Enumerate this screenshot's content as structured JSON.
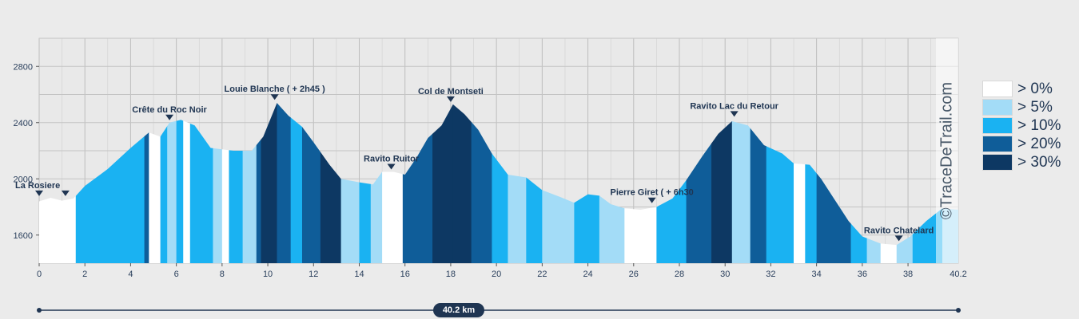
{
  "chart_data": {
    "type": "area",
    "title": "",
    "xlabel": "",
    "ylabel": "",
    "xlim": [
      0,
      40.2
    ],
    "ylim": [
      1400,
      3000
    ],
    "x_ticks": [
      0,
      2,
      4,
      6,
      8,
      10,
      12,
      14,
      16,
      18,
      20,
      22,
      24,
      26,
      28,
      30,
      32,
      34,
      36,
      38
    ],
    "x_end_label": "40.2",
    "y_ticks": [
      1600,
      2000,
      2400,
      2800
    ],
    "grid": true,
    "legend_position": "right",
    "profile": [
      {
        "x": 0,
        "y": 1840
      },
      {
        "x": 0.5,
        "y": 1865
      },
      {
        "x": 1.0,
        "y": 1845
      },
      {
        "x": 1.5,
        "y": 1860
      },
      {
        "x": 2.0,
        "y": 1950
      },
      {
        "x": 3.0,
        "y": 2070
      },
      {
        "x": 4.0,
        "y": 2220
      },
      {
        "x": 4.8,
        "y": 2330
      },
      {
        "x": 5.3,
        "y": 2300
      },
      {
        "x": 5.7,
        "y": 2400
      },
      {
        "x": 6.2,
        "y": 2420
      },
      {
        "x": 6.8,
        "y": 2380
      },
      {
        "x": 7.5,
        "y": 2220
      },
      {
        "x": 8.5,
        "y": 2200
      },
      {
        "x": 9.3,
        "y": 2200
      },
      {
        "x": 9.8,
        "y": 2300
      },
      {
        "x": 10.4,
        "y": 2540
      },
      {
        "x": 10.9,
        "y": 2450
      },
      {
        "x": 11.5,
        "y": 2370
      },
      {
        "x": 12.0,
        "y": 2260
      },
      {
        "x": 12.7,
        "y": 2100
      },
      {
        "x": 13.2,
        "y": 2000
      },
      {
        "x": 14.0,
        "y": 1975
      },
      {
        "x": 14.6,
        "y": 1960
      },
      {
        "x": 15.0,
        "y": 2050
      },
      {
        "x": 15.5,
        "y": 2050
      },
      {
        "x": 16.0,
        "y": 2030
      },
      {
        "x": 16.5,
        "y": 2150
      },
      {
        "x": 17.0,
        "y": 2290
      },
      {
        "x": 17.6,
        "y": 2380
      },
      {
        "x": 18.1,
        "y": 2530
      },
      {
        "x": 18.6,
        "y": 2460
      },
      {
        "x": 19.2,
        "y": 2350
      },
      {
        "x": 19.8,
        "y": 2180
      },
      {
        "x": 20.5,
        "y": 2030
      },
      {
        "x": 21.3,
        "y": 2010
      },
      {
        "x": 22.0,
        "y": 1920
      },
      {
        "x": 22.8,
        "y": 1870
      },
      {
        "x": 23.4,
        "y": 1830
      },
      {
        "x": 24.0,
        "y": 1890
      },
      {
        "x": 24.5,
        "y": 1880
      },
      {
        "x": 25.0,
        "y": 1820
      },
      {
        "x": 25.6,
        "y": 1790
      },
      {
        "x": 26.3,
        "y": 1780
      },
      {
        "x": 27.0,
        "y": 1800
      },
      {
        "x": 27.7,
        "y": 1860
      },
      {
        "x": 28.3,
        "y": 1990
      },
      {
        "x": 29.0,
        "y": 2160
      },
      {
        "x": 29.7,
        "y": 2320
      },
      {
        "x": 30.3,
        "y": 2410
      },
      {
        "x": 31.0,
        "y": 2380
      },
      {
        "x": 31.7,
        "y": 2240
      },
      {
        "x": 32.5,
        "y": 2180
      },
      {
        "x": 33.0,
        "y": 2110
      },
      {
        "x": 33.7,
        "y": 2100
      },
      {
        "x": 34.2,
        "y": 2000
      },
      {
        "x": 34.8,
        "y": 1850
      },
      {
        "x": 35.4,
        "y": 1700
      },
      {
        "x": 36.0,
        "y": 1590
      },
      {
        "x": 36.8,
        "y": 1540
      },
      {
        "x": 37.5,
        "y": 1530
      },
      {
        "x": 38.1,
        "y": 1590
      },
      {
        "x": 38.8,
        "y": 1700
      },
      {
        "x": 39.5,
        "y": 1790
      },
      {
        "x": 40.2,
        "y": 1780
      }
    ],
    "segments": [
      {
        "from": 0,
        "to": 1.6,
        "cls": 0
      },
      {
        "from": 1.6,
        "to": 4.6,
        "cls": 2
      },
      {
        "from": 4.6,
        "to": 4.8,
        "cls": 3
      },
      {
        "from": 4.8,
        "to": 5.3,
        "cls": 0
      },
      {
        "from": 5.3,
        "to": 5.6,
        "cls": 2
      },
      {
        "from": 5.6,
        "to": 6.0,
        "cls": 1
      },
      {
        "from": 6.0,
        "to": 6.3,
        "cls": 2
      },
      {
        "from": 6.3,
        "to": 6.6,
        "cls": 0
      },
      {
        "from": 6.6,
        "to": 7.0,
        "cls": 2
      },
      {
        "from": 7.0,
        "to": 7.6,
        "cls": 2
      },
      {
        "from": 7.6,
        "to": 8.0,
        "cls": 1
      },
      {
        "from": 8.0,
        "to": 8.3,
        "cls": 0
      },
      {
        "from": 8.3,
        "to": 8.9,
        "cls": 2
      },
      {
        "from": 8.9,
        "to": 9.5,
        "cls": 1
      },
      {
        "from": 9.5,
        "to": 9.7,
        "cls": 3
      },
      {
        "from": 9.7,
        "to": 10.4,
        "cls": 4
      },
      {
        "from": 10.4,
        "to": 11.0,
        "cls": 3
      },
      {
        "from": 11.0,
        "to": 11.5,
        "cls": 2
      },
      {
        "from": 11.5,
        "to": 12.3,
        "cls": 3
      },
      {
        "from": 12.3,
        "to": 13.2,
        "cls": 4
      },
      {
        "from": 13.2,
        "to": 14.0,
        "cls": 1
      },
      {
        "from": 14.0,
        "to": 14.5,
        "cls": 2
      },
      {
        "from": 14.5,
        "to": 15.0,
        "cls": 1
      },
      {
        "from": 15.0,
        "to": 15.9,
        "cls": 0
      },
      {
        "from": 15.9,
        "to": 17.2,
        "cls": 3
      },
      {
        "from": 17.2,
        "to": 18.1,
        "cls": 4
      },
      {
        "from": 18.1,
        "to": 18.9,
        "cls": 4
      },
      {
        "from": 18.9,
        "to": 19.8,
        "cls": 3
      },
      {
        "from": 19.8,
        "to": 20.5,
        "cls": 2
      },
      {
        "from": 20.5,
        "to": 21.3,
        "cls": 1
      },
      {
        "from": 21.3,
        "to": 22.0,
        "cls": 2
      },
      {
        "from": 22.0,
        "to": 23.4,
        "cls": 1
      },
      {
        "from": 23.4,
        "to": 24.5,
        "cls": 2
      },
      {
        "from": 24.5,
        "to": 25.6,
        "cls": 1
      },
      {
        "from": 25.6,
        "to": 27.0,
        "cls": 0
      },
      {
        "from": 27.0,
        "to": 28.3,
        "cls": 2
      },
      {
        "from": 28.3,
        "to": 29.4,
        "cls": 3
      },
      {
        "from": 29.4,
        "to": 30.3,
        "cls": 4
      },
      {
        "from": 30.3,
        "to": 31.1,
        "cls": 1
      },
      {
        "from": 31.1,
        "to": 31.8,
        "cls": 3
      },
      {
        "from": 31.8,
        "to": 33.0,
        "cls": 2
      },
      {
        "from": 33.0,
        "to": 33.5,
        "cls": 0
      },
      {
        "from": 33.5,
        "to": 34.0,
        "cls": 2
      },
      {
        "from": 34.0,
        "to": 35.5,
        "cls": 3
      },
      {
        "from": 35.5,
        "to": 36.2,
        "cls": 2
      },
      {
        "from": 36.2,
        "to": 36.8,
        "cls": 1
      },
      {
        "from": 36.8,
        "to": 37.5,
        "cls": 0
      },
      {
        "from": 37.5,
        "to": 38.2,
        "cls": 1
      },
      {
        "from": 38.2,
        "to": 39.5,
        "cls": 2
      },
      {
        "from": 39.5,
        "to": 40.2,
        "cls": 1
      }
    ],
    "waypoints": [
      {
        "label": "La Rosiere",
        "x": 0.0,
        "y": 1860
      },
      {
        "label": "",
        "x": 1.15,
        "y": 1860
      },
      {
        "label": "Crête du Roc Noir",
        "x": 5.7,
        "y": 2400
      },
      {
        "label": "Louie Blanche ( + 2h45 )",
        "x": 10.3,
        "y": 2545
      },
      {
        "label": "Ravito Ruitor",
        "x": 15.4,
        "y": 2050
      },
      {
        "label": "Col de Montseti",
        "x": 18.0,
        "y": 2530
      },
      {
        "label": "Pierre Giret ( + 6h30",
        "x": 26.8,
        "y": 1810
      },
      {
        "label": "Ravito Lac du Retour",
        "x": 30.4,
        "y": 2425
      },
      {
        "label": "Ravito Chatelard",
        "x": 37.6,
        "y": 1540
      }
    ],
    "legend": [
      {
        "label": "> 0%",
        "color": "#ffffff"
      },
      {
        "label": "> 5%",
        "color": "#a3dcf7"
      },
      {
        "label": "> 10%",
        "color": "#1ab2f2"
      },
      {
        "label": "> 20%",
        "color": "#0f5d99"
      },
      {
        "label": "> 30%",
        "color": "#0d3863"
      }
    ]
  },
  "watermark": "©TraceDeTrail.com",
  "distance_label": "40.2 km"
}
